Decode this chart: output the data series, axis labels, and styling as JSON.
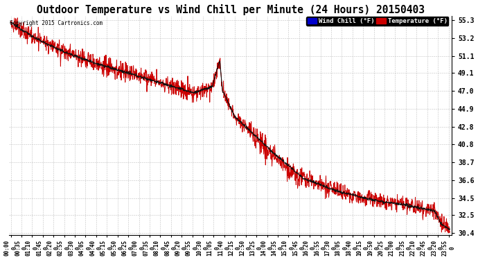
{
  "title": "Outdoor Temperature vs Wind Chill per Minute (24 Hours) 20150403",
  "copyright": "Copyright 2015 Cartronics.com",
  "ylabel_right_ticks": [
    30.4,
    32.5,
    34.5,
    36.6,
    38.7,
    40.8,
    42.8,
    44.9,
    47.0,
    49.1,
    51.1,
    53.2,
    55.3
  ],
  "ymin": 30.4,
  "ymax": 55.3,
  "background_color": "#ffffff",
  "plot_bg_color": "#ffffff",
  "grid_color": "#bbbbbb",
  "title_fontsize": 10.5,
  "tick_fontsize": 7,
  "xtick_step_minutes": 35,
  "n_minutes": 1440
}
